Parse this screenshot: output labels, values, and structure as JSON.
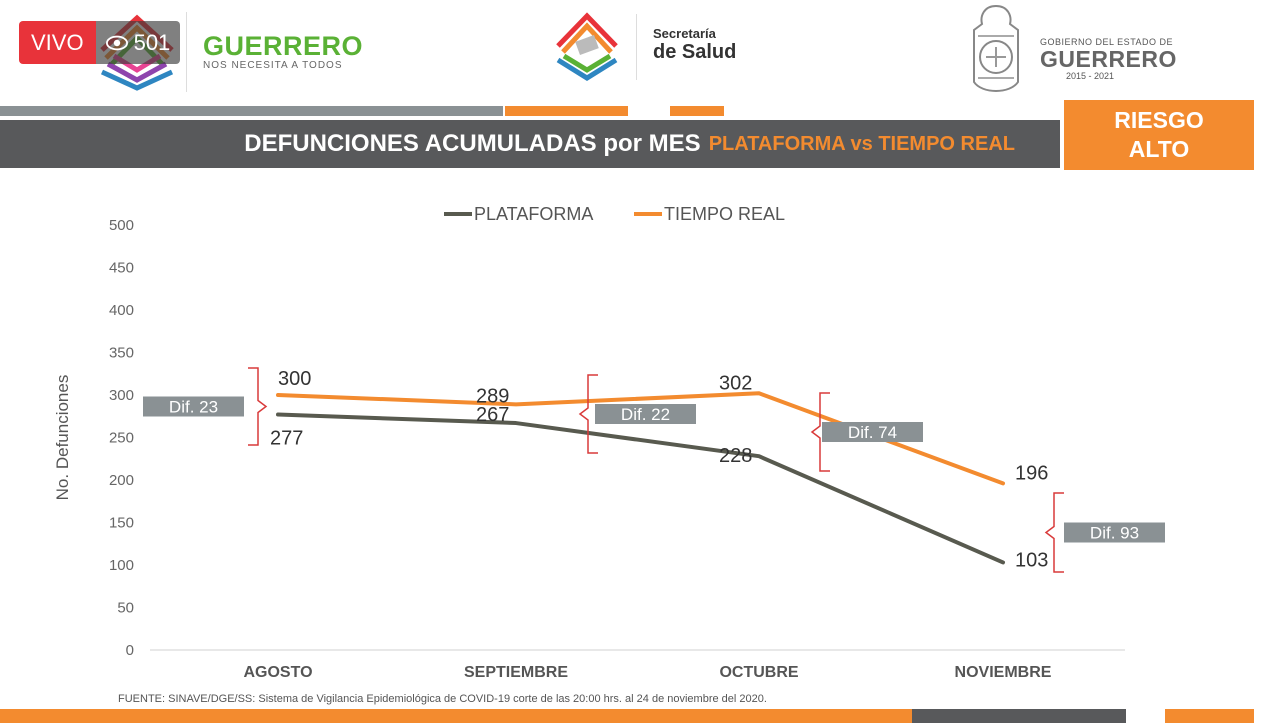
{
  "live": {
    "label": "VIVO",
    "views": "501"
  },
  "header": {
    "left_brand": {
      "name": "GUERRERO",
      "tagline": "NOS NECESITA A TODOS"
    },
    "mid_brand": {
      "line1": "Secretaría",
      "line2": "de Salud"
    },
    "right_brand": {
      "line1": "GOBIERNO DEL ESTADO DE",
      "line2": "GUERRERO",
      "line3": "2015 - 2021"
    }
  },
  "title": {
    "main": "DEFUNCIONES ACUMULADAS por MES",
    "sub": "PLATAFORMA vs TIEMPO REAL"
  },
  "risk": {
    "line1": "RIESGO",
    "line2": "ALTO"
  },
  "footer": "FUENTE: SINAVE/DGE/SS: Sistema de Vigilancia Epidemiológica de COVID-19 corte de las 20:00 hrs. al 24 de noviembre del 2020.",
  "colors": {
    "orange": "#f38b2f",
    "dark": "#585a4f",
    "gray_bar": "#58595b",
    "bracket": "#d93a3a",
    "dif_box": "#8a9194"
  },
  "chart_data": {
    "type": "line",
    "categories": [
      "AGOSTO",
      "SEPTIEMBRE",
      "OCTUBRE",
      "NOVIEMBRE"
    ],
    "series": [
      {
        "name": "PLATAFORMA",
        "values": [
          277,
          267,
          228,
          103
        ],
        "color": "#585a4f"
      },
      {
        "name": "TIEMPO REAL",
        "values": [
          300,
          289,
          302,
          196
        ],
        "color": "#f38b2f"
      }
    ],
    "differences": [
      "Dif. 23",
      "Dif. 22",
      "Dif. 74",
      "Dif. 93"
    ],
    "ylabel": "No. Defunciones",
    "ylim": [
      0,
      500
    ],
    "yticks": [
      0,
      50,
      100,
      150,
      200,
      250,
      300,
      350,
      400,
      450,
      500
    ],
    "legend_position": "top-center"
  }
}
